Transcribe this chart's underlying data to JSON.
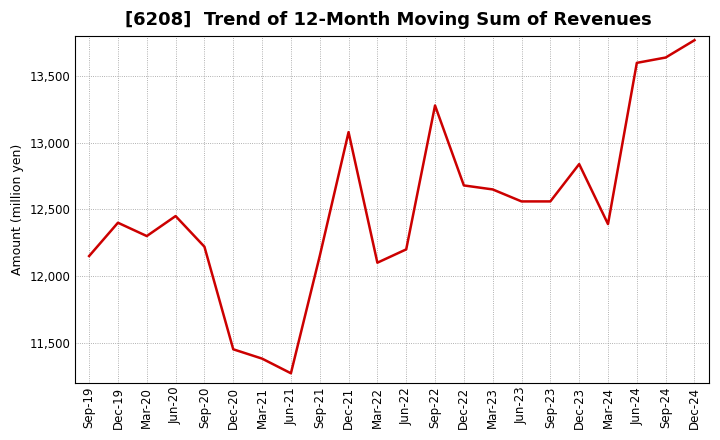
{
  "title": "[6208]  Trend of 12-Month Moving Sum of Revenues",
  "ylabel": "Amount (million yen)",
  "line_color": "#cc0000",
  "background_color": "#ffffff",
  "plot_bg_color": "#ffffff",
  "grid_color": "#999999",
  "x_labels": [
    "Sep-19",
    "Dec-19",
    "Mar-20",
    "Jun-20",
    "Sep-20",
    "Dec-20",
    "Mar-21",
    "Jun-21",
    "Sep-21",
    "Dec-21",
    "Mar-22",
    "Jun-22",
    "Sep-22",
    "Dec-22",
    "Mar-23",
    "Jun-23",
    "Sep-23",
    "Dec-23",
    "Mar-24",
    "Jun-24",
    "Sep-24",
    "Dec-24"
  ],
  "y_values": [
    12150,
    12400,
    12300,
    12450,
    12220,
    11450,
    11380,
    11270,
    12150,
    13080,
    12100,
    12200,
    13280,
    12680,
    12650,
    12560,
    12560,
    12840,
    12390,
    13600,
    13640,
    13770
  ],
  "ylim": [
    11200,
    13800
  ],
  "yticks": [
    11500,
    12000,
    12500,
    13000,
    13500
  ],
  "title_fontsize": 13,
  "ylabel_fontsize": 9,
  "tick_fontsize": 8.5,
  "linewidth": 1.8
}
